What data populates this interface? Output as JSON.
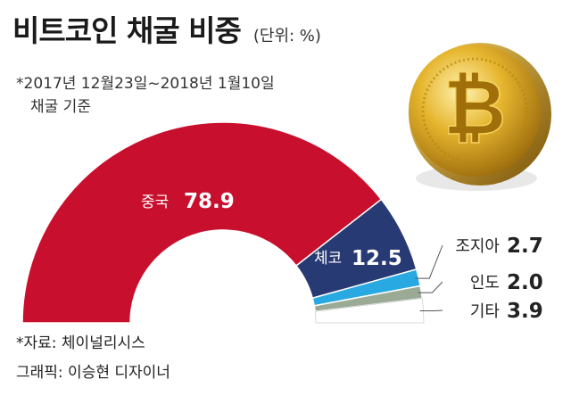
{
  "title": "비트코인 채굴 비중",
  "unit": "(단위: %)",
  "period_line1": "*2017년 12월23일~2018년 1월10일",
  "period_line2": "채굴 기준",
  "source": "*자료: 체이널리시스",
  "credit": "그래픽: 이승현 디자이너",
  "colors": {
    "china": "#c8102e",
    "czech": "#283a73",
    "russia": "#29a9e1",
    "india": "#9aaa95",
    "other": "#ffffff",
    "coin": "#d9a21b"
  },
  "coin_symbol": "₿",
  "chart_data": {
    "type": "pie",
    "shape": "half-donut",
    "categories": [
      "중국",
      "체코",
      "조지아",
      "인도",
      "기타"
    ],
    "values": [
      78.9,
      12.5,
      2.7,
      2.0,
      3.9
    ],
    "labels": [
      {
        "name": "중국",
        "value": "78.9"
      },
      {
        "name": "체코",
        "value": "12.5"
      },
      {
        "name": "조지아",
        "value": "2.7"
      },
      {
        "name": "인도",
        "value": "2.0"
      },
      {
        "name": "기타",
        "value": "3.9"
      }
    ]
  }
}
